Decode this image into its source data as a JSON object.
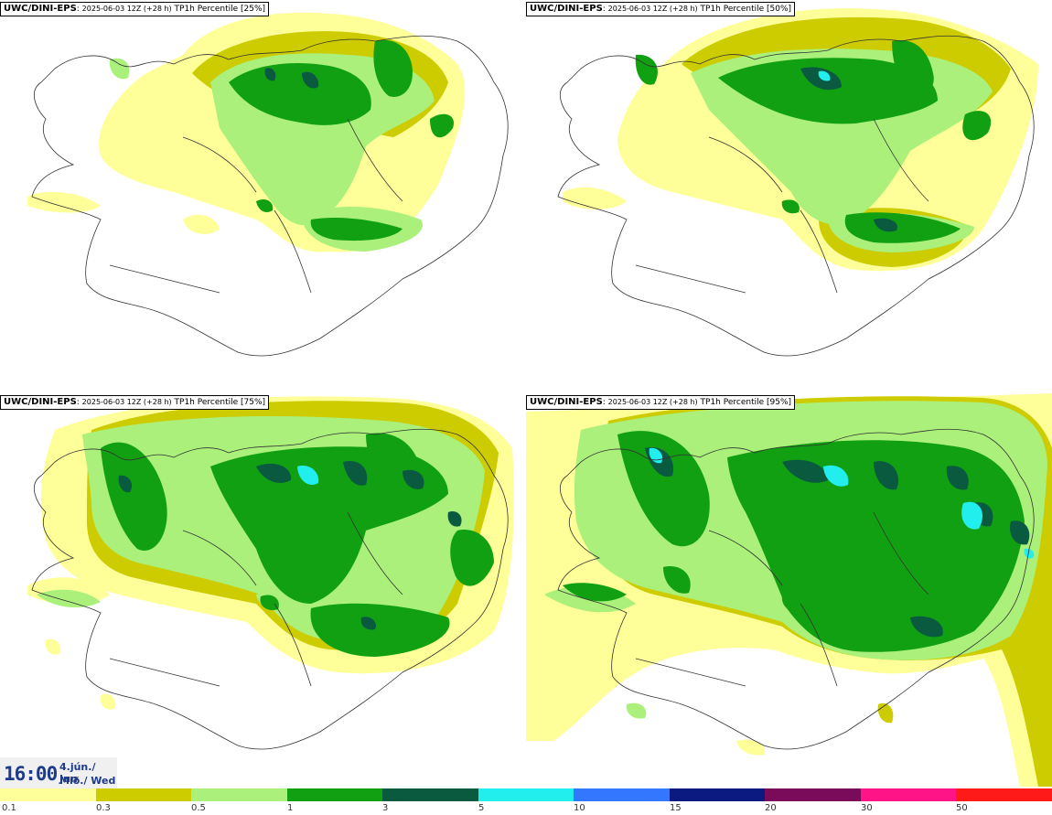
{
  "panels": [
    {
      "source": "UWC/DINI-EPS",
      "run": "2025-06-03 12Z (+28 h)",
      "title": "TP1h Percentile [25%]"
    },
    {
      "source": "UWC/DINI-EPS",
      "run": "2025-06-03 12Z (+28 h)",
      "title": "TP1h Percentile [50%]"
    },
    {
      "source": "UWC/DINI-EPS",
      "run": "2025-06-03 12Z (+28 h)",
      "title": "TP1h Percentile [75%]"
    },
    {
      "source": "UWC/DINI-EPS",
      "run": "2025-06-03 12Z (+28 h)",
      "title": "TP1h Percentile [95%]"
    }
  ],
  "time": {
    "hour": "16:00",
    "date": "4.jún./ Jun",
    "weekday": "Mið./ Wed"
  },
  "legend": {
    "ticks": [
      "0.1",
      "0.3",
      "0.5",
      "1",
      "3",
      "5",
      "10",
      "15",
      "20",
      "30",
      "50"
    ],
    "colors": [
      "#ffff99",
      "#cccc00",
      "#aaf07a",
      "#11a011",
      "#0a5a40",
      "#22eeee",
      "#3377ff",
      "#0a1a80",
      "#7a0a5a",
      "#ff1488",
      "#ff1a1a"
    ]
  },
  "colors": {
    "c01": "#ffff99",
    "c03": "#cccc00",
    "c05": "#aaf07a",
    "c1": "#11a011",
    "c3": "#0a5a40",
    "c5": "#22eeee"
  }
}
